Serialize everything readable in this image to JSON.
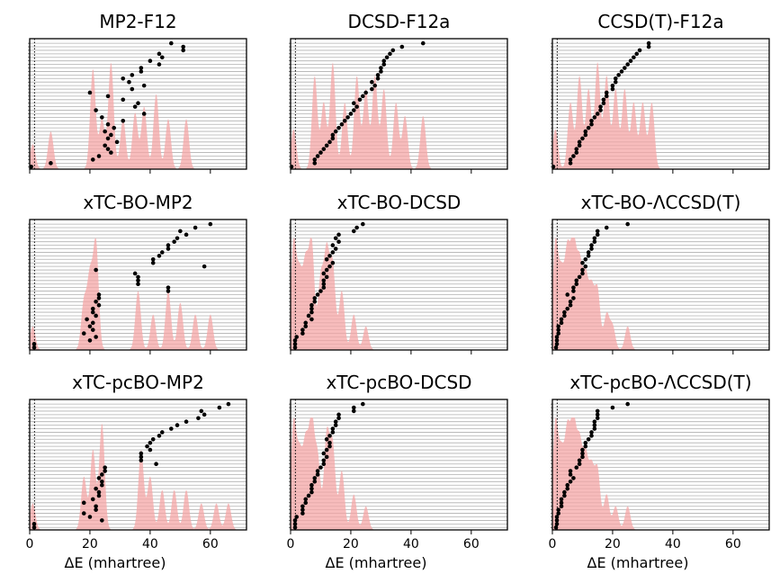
{
  "figure": {
    "xlabel": "ΔE (mhartree)",
    "x_ticks": [
      0,
      20,
      40,
      60
    ]
  },
  "chart_data": [
    {
      "type": "scatter",
      "title": "MP2-F12",
      "xlim": [
        0,
        72
      ],
      "x": [
        0.5,
        7,
        21,
        23,
        27,
        26,
        25,
        29,
        26,
        27,
        25,
        28,
        26,
        31,
        24,
        38,
        22,
        35,
        36,
        31,
        26,
        20,
        34,
        38,
        33,
        31,
        34,
        37,
        37,
        43,
        40,
        44,
        43,
        51,
        51,
        47
      ],
      "density_peaks": [
        [
          1,
          2
        ],
        [
          7,
          3
        ],
        [
          21,
          8
        ],
        [
          24,
          4
        ],
        [
          27,
          8.5
        ],
        [
          31,
          4
        ],
        [
          35,
          4.5
        ],
        [
          38,
          5
        ],
        [
          42,
          6
        ],
        [
          46,
          4
        ],
        [
          52,
          4
        ]
      ]
    },
    {
      "type": "scatter",
      "title": "DCSD-F12a",
      "xlim": [
        0,
        72
      ],
      "x": [
        0.3,
        8,
        8,
        9,
        10,
        11,
        12,
        13,
        14,
        14,
        15,
        16,
        17,
        18,
        19,
        20,
        21,
        22,
        21,
        23,
        24,
        25,
        27,
        28,
        27,
        29,
        29,
        30,
        30,
        31,
        31,
        32,
        33,
        34,
        37,
        44
      ],
      "density_peaks": [
        [
          1,
          3
        ],
        [
          8,
          7
        ],
        [
          11,
          5
        ],
        [
          14,
          8
        ],
        [
          18,
          5
        ],
        [
          22,
          7
        ],
        [
          25,
          6
        ],
        [
          28,
          7
        ],
        [
          31,
          6
        ],
        [
          35,
          5
        ],
        [
          38,
          4
        ],
        [
          44,
          4
        ]
      ]
    },
    {
      "type": "scatter",
      "title": "CCSD(T)-F12a",
      "xlim": [
        0,
        72
      ],
      "x": [
        0.3,
        6,
        6,
        7,
        8,
        8,
        9,
        9,
        10,
        11,
        11,
        12,
        13,
        13,
        14,
        15,
        16,
        16,
        17,
        17,
        18,
        18,
        20,
        20,
        21,
        21,
        22,
        23,
        24,
        25,
        26,
        27,
        28,
        29,
        32,
        32
      ],
      "density_peaks": [
        [
          1,
          3
        ],
        [
          6,
          5
        ],
        [
          9,
          7
        ],
        [
          12,
          6
        ],
        [
          15,
          8
        ],
        [
          18,
          7
        ],
        [
          21,
          6
        ],
        [
          24,
          6
        ],
        [
          27,
          5
        ],
        [
          30,
          5
        ],
        [
          33,
          5
        ]
      ]
    },
    {
      "type": "scatter",
      "title": "xTC-BO-MP2",
      "xlim": [
        0,
        72
      ],
      "x": [
        1.5,
        1.5,
        20,
        22,
        18,
        21,
        20,
        21,
        19,
        22,
        21,
        21,
        23,
        22,
        23,
        23,
        46,
        46,
        36,
        36,
        36,
        35,
        22,
        58,
        41,
        41,
        43,
        44,
        46,
        46,
        48,
        49,
        52,
        50,
        55,
        60
      ],
      "density_peaks": [
        [
          1,
          2
        ],
        [
          18,
          4
        ],
        [
          20,
          6
        ],
        [
          22,
          9
        ],
        [
          36,
          5
        ],
        [
          41,
          3
        ],
        [
          46,
          5
        ],
        [
          50,
          4
        ],
        [
          55,
          3
        ],
        [
          60,
          3
        ]
      ]
    },
    {
      "type": "scatter",
      "title": "xTC-BO-DCSD",
      "xlim": [
        0,
        72
      ],
      "x": [
        1.5,
        1.5,
        1.5,
        2,
        4,
        4,
        5,
        5,
        7,
        6,
        7,
        7,
        7,
        8,
        8,
        9,
        10,
        11,
        11,
        11,
        12,
        11,
        12,
        13,
        14,
        12,
        13,
        14,
        15,
        14,
        16,
        15,
        16,
        21,
        22,
        24
      ],
      "density_peaks": [
        [
          1,
          9
        ],
        [
          3,
          6
        ],
        [
          5,
          7
        ],
        [
          7,
          9
        ],
        [
          10,
          6
        ],
        [
          12,
          8
        ],
        [
          14,
          7
        ],
        [
          17,
          5
        ],
        [
          21,
          3
        ],
        [
          25,
          2
        ]
      ]
    },
    {
      "type": "scatter",
      "title": "xTC-BO-ΛCCSD(T)",
      "xlim": [
        0,
        72
      ],
      "x": [
        1.2,
        1.5,
        1.5,
        1.5,
        2,
        2,
        2,
        3,
        3,
        4,
        4,
        5,
        6,
        6,
        7,
        5,
        7,
        7,
        8,
        8,
        9,
        10,
        10,
        11,
        10,
        11,
        12,
        12,
        13,
        13,
        14,
        14,
        15,
        15,
        18,
        25
      ],
      "density_peaks": [
        [
          1,
          9
        ],
        [
          3,
          6
        ],
        [
          5,
          8
        ],
        [
          7,
          9
        ],
        [
          9,
          7
        ],
        [
          11,
          6
        ],
        [
          13,
          5
        ],
        [
          15,
          5
        ],
        [
          18,
          3
        ],
        [
          20,
          2
        ],
        [
          25,
          2
        ]
      ]
    },
    {
      "type": "scatter",
      "title": "xTC-pcBO-MP2",
      "xlim": [
        0,
        72
      ],
      "x": [
        1.5,
        1.5,
        24,
        20,
        18,
        22,
        22,
        18,
        21,
        23,
        23,
        22,
        24,
        24,
        23,
        24,
        25,
        25,
        42,
        37,
        37,
        37,
        40,
        39,
        40,
        41,
        43,
        44,
        47,
        49,
        52,
        56,
        58,
        57,
        63,
        66
      ],
      "density_peaks": [
        [
          1,
          2
        ],
        [
          18,
          4
        ],
        [
          21,
          6
        ],
        [
          24,
          8
        ],
        [
          37,
          6
        ],
        [
          40,
          4
        ],
        [
          44,
          3
        ],
        [
          48,
          3
        ],
        [
          52,
          3
        ],
        [
          57,
          2
        ],
        [
          62,
          2
        ],
        [
          66,
          2
        ]
      ]
    },
    {
      "type": "scatter",
      "title": "xTC-pcBO-DCSD",
      "xlim": [
        0,
        72
      ],
      "x": [
        1.5,
        1.5,
        1.5,
        2,
        4,
        4,
        4,
        5,
        5,
        6,
        7,
        7,
        7,
        8,
        8,
        9,
        9,
        10,
        11,
        11,
        12,
        11,
        12,
        13,
        13,
        12,
        13,
        14,
        14,
        15,
        15,
        16,
        16,
        21,
        21,
        24
      ],
      "density_peaks": [
        [
          1,
          9
        ],
        [
          3,
          6
        ],
        [
          5,
          7
        ],
        [
          7,
          9
        ],
        [
          9,
          6
        ],
        [
          12,
          8
        ],
        [
          14,
          7
        ],
        [
          17,
          5
        ],
        [
          21,
          3
        ],
        [
          25,
          2
        ]
      ]
    },
    {
      "type": "scatter",
      "title": "xTC-pcBO-ΛCCSD(T)",
      "xlim": [
        0,
        72
      ],
      "x": [
        1.2,
        1.5,
        1.5,
        1.5,
        2,
        2,
        3,
        3,
        3,
        4,
        4,
        5,
        5,
        6,
        7,
        6,
        6,
        8,
        9,
        9,
        10,
        10,
        10,
        11,
        11,
        12,
        13,
        13,
        14,
        14,
        14,
        15,
        15,
        15,
        20,
        25
      ],
      "density_peaks": [
        [
          1,
          9
        ],
        [
          3,
          6
        ],
        [
          5,
          8
        ],
        [
          7,
          9
        ],
        [
          9,
          7
        ],
        [
          11,
          6
        ],
        [
          13,
          5
        ],
        [
          15,
          5
        ],
        [
          18,
          3
        ],
        [
          21,
          2
        ],
        [
          25,
          2
        ]
      ]
    }
  ]
}
